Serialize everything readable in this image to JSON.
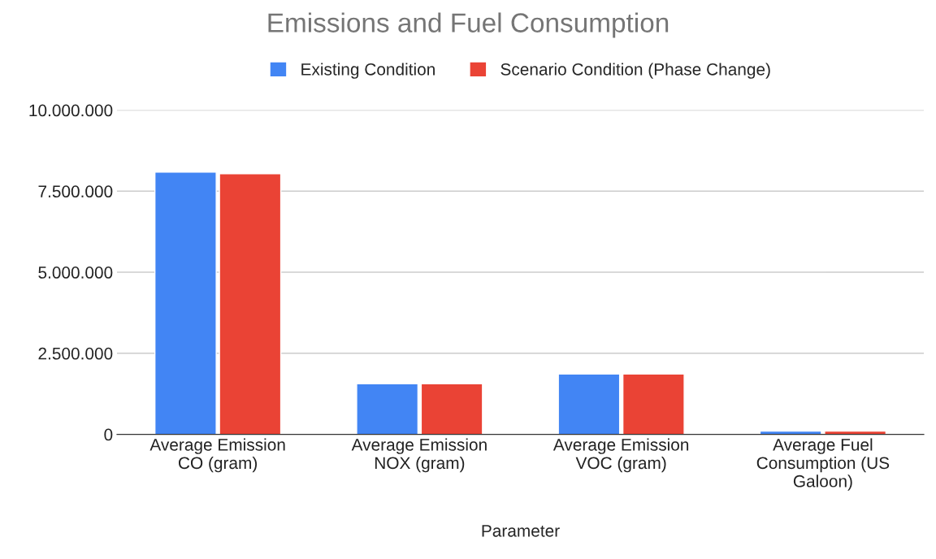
{
  "chart_data": {
    "type": "bar",
    "title": "Emissions and Fuel Consumption",
    "xlabel": "Parameter",
    "categories": [
      "Average Emission CO (gram)",
      "Average Emission NOX (gram)",
      "Average Emission VOC (gram)",
      "Average Fuel Consumption (US Galoon)"
    ],
    "series": [
      {
        "name": "Existing Condition",
        "color": "#4285f4",
        "values": [
          8090000,
          1560000,
          1860000,
          100000
        ]
      },
      {
        "name": "Scenario Condition (Phase Change)",
        "color": "#ea4335",
        "values": [
          8040000,
          1560000,
          1860000,
          100000
        ]
      }
    ],
    "ylim": [
      0,
      10000000
    ],
    "yticks": [
      0,
      {
        "value": 2500000,
        "label": "2.500.000"
      },
      {
        "value": 5000000,
        "label": "5.000.000"
      },
      {
        "value": 7500000,
        "label": "7.500.000"
      },
      {
        "value": 10000000,
        "label": "10.000.000"
      }
    ],
    "grid": "y",
    "legend": "top"
  }
}
